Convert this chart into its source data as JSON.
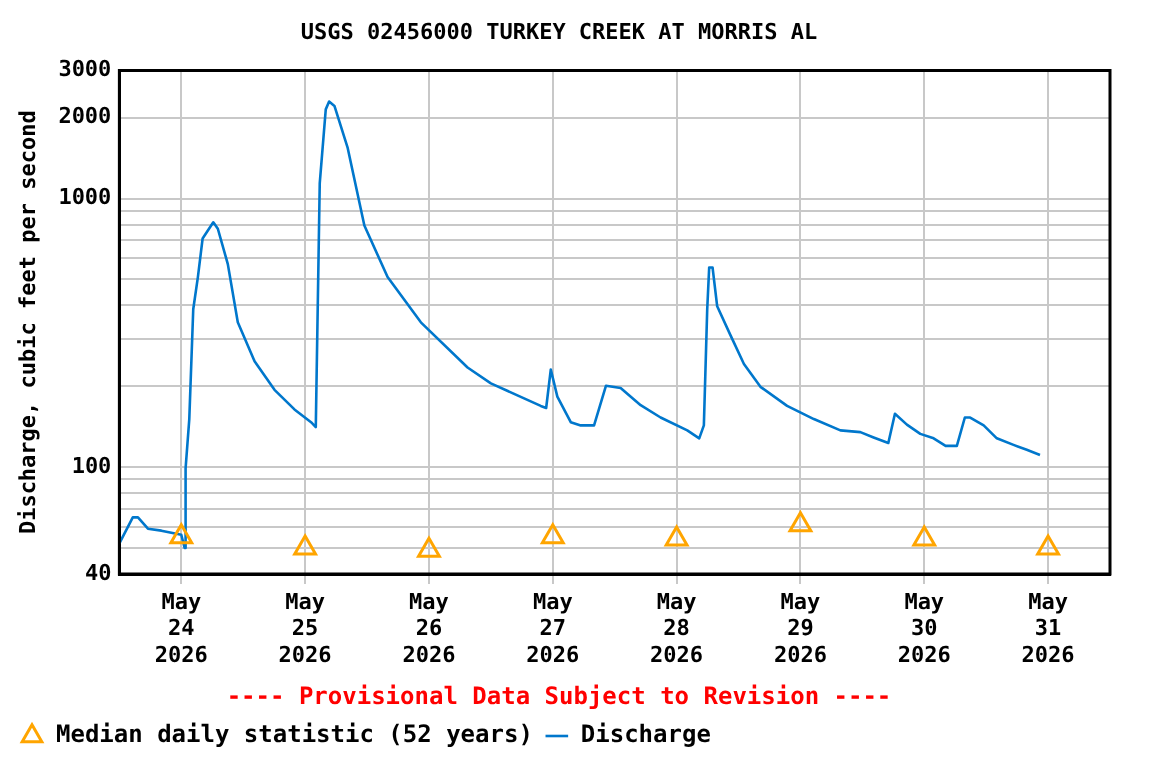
{
  "chart_data": {
    "type": "line",
    "title": "USGS 02456000 TURKEY CREEK AT MORRIS AL",
    "ylabel": "Discharge, cubic feet per second",
    "log": true,
    "grid": true,
    "legend": "bottom",
    "xlim": [
      "2026-05-23T12:00",
      "2026-05-31T12:00"
    ],
    "xticks": [
      {
        "value": "2026-05-24",
        "label": "May 24 2026"
      },
      {
        "value": "2026-05-25",
        "label": "May 25 2026"
      },
      {
        "value": "2026-05-26",
        "label": "May 26 2026"
      },
      {
        "value": "2026-05-27",
        "label": "May 27 2026"
      },
      {
        "value": "2026-05-28",
        "label": "May 28 2026"
      },
      {
        "value": "2026-05-29",
        "label": "May 29 2026"
      },
      {
        "value": "2026-05-30",
        "label": "May 30 2026"
      },
      {
        "value": "2026-05-31",
        "label": "May 31 2026"
      }
    ],
    "ylim": [
      40,
      3000
    ],
    "yticks": [
      40,
      {
        "value": 50,
        "label": null
      },
      {
        "value": 60,
        "label": null
      },
      {
        "value": 70,
        "label": null
      },
      {
        "value": 80,
        "label": null
      },
      {
        "value": 90,
        "label": null
      },
      100,
      {
        "value": 200,
        "label": null
      },
      {
        "value": 300,
        "label": null
      },
      {
        "value": 400,
        "label": null
      },
      {
        "value": 500,
        "label": null
      },
      {
        "value": 600,
        "label": null
      },
      {
        "value": 700,
        "label": null
      },
      {
        "value": 800,
        "label": null
      },
      {
        "value": 900,
        "label": null
      },
      1000,
      2000,
      3000
    ],
    "annotations": [
      "---- Provisional Data Subject to Revision ----"
    ],
    "series": [
      {
        "name": "Median daily statistic (52 years)",
        "type": "scatter",
        "marker": "triangle",
        "color": "#ffa500",
        "x": [
          "2026-05-24",
          "2026-05-25",
          "2026-05-26",
          "2026-05-27",
          "2026-05-28",
          "2026-05-29",
          "2026-05-30",
          "2026-05-31"
        ],
        "values": [
          55,
          50,
          49,
          55,
          54,
          61,
          54,
          50
        ]
      },
      {
        "name": "Discharge",
        "type": "line",
        "marker": "none",
        "line_style": "solid",
        "color": "#0077cc",
        "x": [
          "2026-05-23T12:00",
          "2026-05-23T14:36",
          "2026-05-23T15:36",
          "2026-05-23T17:32",
          "2026-05-23T20:08",
          "2026-05-24T00:00",
          "2026-05-24T00:39",
          "2026-05-24T00:50",
          "2026-05-24T01:33",
          "2026-05-24T02:19",
          "2026-05-24T03:13",
          "2026-05-24T04:08",
          "2026-05-24T06:12",
          "2026-05-24T07:05",
          "2026-05-24T09:01",
          "2026-05-24T10:57",
          "2026-05-24T14:12",
          "2026-05-24T18:04",
          "2026-05-24T21:56",
          "2026-05-25T01:09",
          "2026-05-25T02:04",
          "2026-05-25T02:50",
          "2026-05-25T04:00",
          "2026-05-25T04:39",
          "2026-05-25T05:41",
          "2026-05-25T08:15",
          "2026-05-25T11:29",
          "2026-05-25T15:59",
          "2026-05-25T22:26",
          "2026-05-26T07:29",
          "2026-05-26T12:00",
          "2026-05-26T21:40",
          "2026-05-26T22:43",
          "2026-05-26T23:37",
          "2026-05-27T00:53",
          "2026-05-27T03:29",
          "2026-05-27T05:25",
          "2026-05-27T08:00",
          "2026-05-27T10:19",
          "2026-05-27T13:09",
          "2026-05-27T17:02",
          "2026-05-27T20:54",
          "2026-05-28T02:04",
          "2026-05-28T04:23",
          "2026-05-28T05:17",
          "2026-05-28T05:56",
          "2026-05-28T06:19",
          "2026-05-28T06:58",
          "2026-05-28T07:52",
          "2026-05-28T10:26",
          "2026-05-28T13:03",
          "2026-05-28T16:15",
          "2026-05-28T21:25",
          "2026-05-29T02:36",
          "2026-05-29T07:45",
          "2026-05-29T11:37",
          "2026-05-29T14:11",
          "2026-05-29T17:02",
          "2026-05-29T18:19",
          "2026-05-29T20:38",
          "2026-05-29T23:14",
          "2026-05-30T01:49",
          "2026-05-30T04:08",
          "2026-05-30T06:19",
          "2026-05-30T07:52",
          "2026-05-30T08:54",
          "2026-05-30T11:31",
          "2026-05-30T14:04",
          "2026-05-30T17:18",
          "2026-05-30T19:52",
          "2026-05-30T22:26"
        ],
        "values": [
          52,
          65,
          65,
          59,
          58,
          56,
          50,
          99,
          151,
          387,
          510,
          710,
          816,
          772,
          570,
          346,
          248,
          194,
          164,
          147,
          141,
          1138,
          2148,
          2297,
          2213,
          1543,
          794,
          510,
          346,
          235,
          205,
          169,
          166,
          231,
          183,
          147,
          143,
          143,
          201,
          197,
          170,
          153,
          137,
          128,
          143,
          387,
          554,
          554,
          397,
          310,
          242,
          199,
          169,
          151,
          137,
          135,
          129,
          123,
          158,
          144,
          133,
          128,
          120,
          120,
          153,
          153,
          143,
          128,
          121,
          116,
          111
        ]
      }
    ]
  }
}
